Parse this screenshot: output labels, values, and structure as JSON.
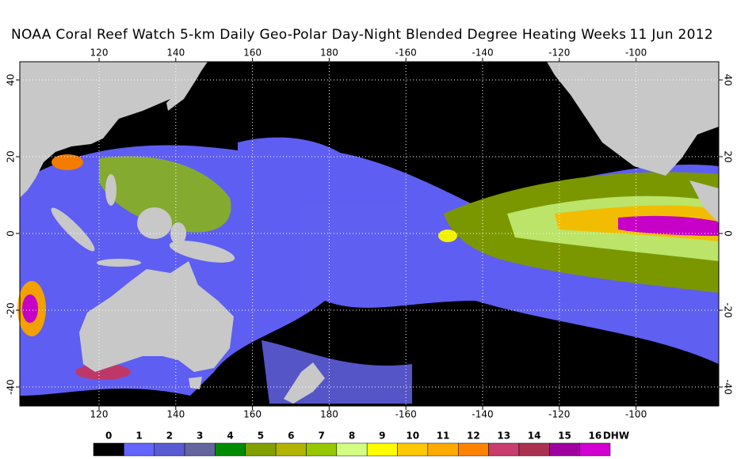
{
  "header": {
    "title": "NOAA Coral Reef Watch 5-km Daily Geo-Polar Day-Night Blended Degree Heating Weeks",
    "date": "11 Jun 2012"
  },
  "map": {
    "lon_ticks": [
      120,
      140,
      160,
      180,
      -160,
      -140,
      -120,
      -100
    ],
    "lat_ticks": [
      40,
      20,
      0,
      -20,
      -40
    ],
    "ocean_color": "#000000",
    "land_color": "#c8c8c8",
    "grid": true
  },
  "legend": {
    "unit": "DHW",
    "items": [
      {
        "label": 0,
        "color": "#000000"
      },
      {
        "label": 1,
        "color": "#6464ff"
      },
      {
        "label": 2,
        "color": "#5a5ad2"
      },
      {
        "label": 3,
        "color": "#64649e"
      },
      {
        "label": 4,
        "color": "#008c00"
      },
      {
        "label": 5,
        "color": "#82a000"
      },
      {
        "label": 6,
        "color": "#b4b400"
      },
      {
        "label": 7,
        "color": "#96c800"
      },
      {
        "label": 8,
        "color": "#d2ff82"
      },
      {
        "label": 9,
        "color": "#ffff00"
      },
      {
        "label": 10,
        "color": "#ffc800"
      },
      {
        "label": 11,
        "color": "#ffaa00"
      },
      {
        "label": 12,
        "color": "#ff8200"
      },
      {
        "label": 13,
        "color": "#c83c6e"
      },
      {
        "label": 14,
        "color": "#aa3250"
      },
      {
        "label": 15,
        "color": "#a000a0"
      },
      {
        "label": 16,
        "color": "#d200d2"
      }
    ]
  }
}
